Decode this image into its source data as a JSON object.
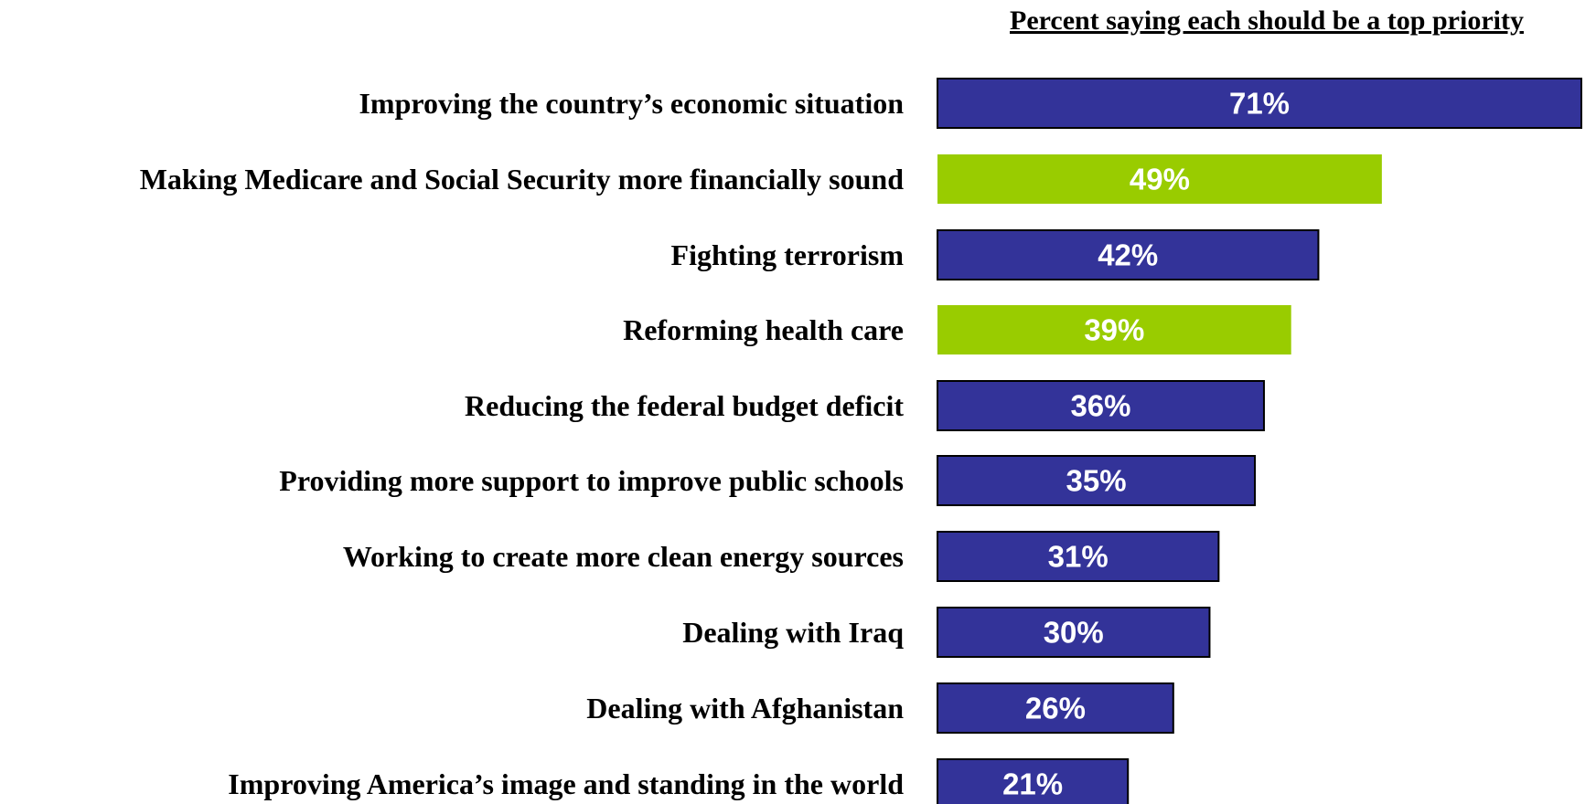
{
  "chart_data": {
    "type": "bar",
    "orientation": "horizontal",
    "title": "Percent saying each should be a top priority",
    "categories": [
      "Improving the country’s economic situation",
      "Making Medicare and Social Security more financially sound",
      "Fighting terrorism",
      "Reforming health care",
      "Reducing the federal budget deficit",
      "Providing more support to improve public schools",
      "Working to create more clean energy sources",
      "Dealing with Iraq",
      "Dealing with Afghanistan",
      "Improving America’s image and standing in the world"
    ],
    "values": [
      71,
      49,
      42,
      39,
      36,
      35,
      31,
      30,
      26,
      21
    ],
    "value_labels": [
      "71%",
      "49%",
      "42%",
      "39%",
      "36%",
      "35%",
      "31%",
      "30%",
      "26%",
      "21%"
    ],
    "highlighted": [
      false,
      true,
      false,
      true,
      false,
      false,
      false,
      false,
      false,
      false
    ],
    "colors": {
      "default": "#333399",
      "highlight": "#99CC00",
      "border": "#000000",
      "value_text": "#FFFFFF"
    },
    "xlim": [
      0,
      71
    ],
    "grid": false,
    "legend": "none"
  }
}
